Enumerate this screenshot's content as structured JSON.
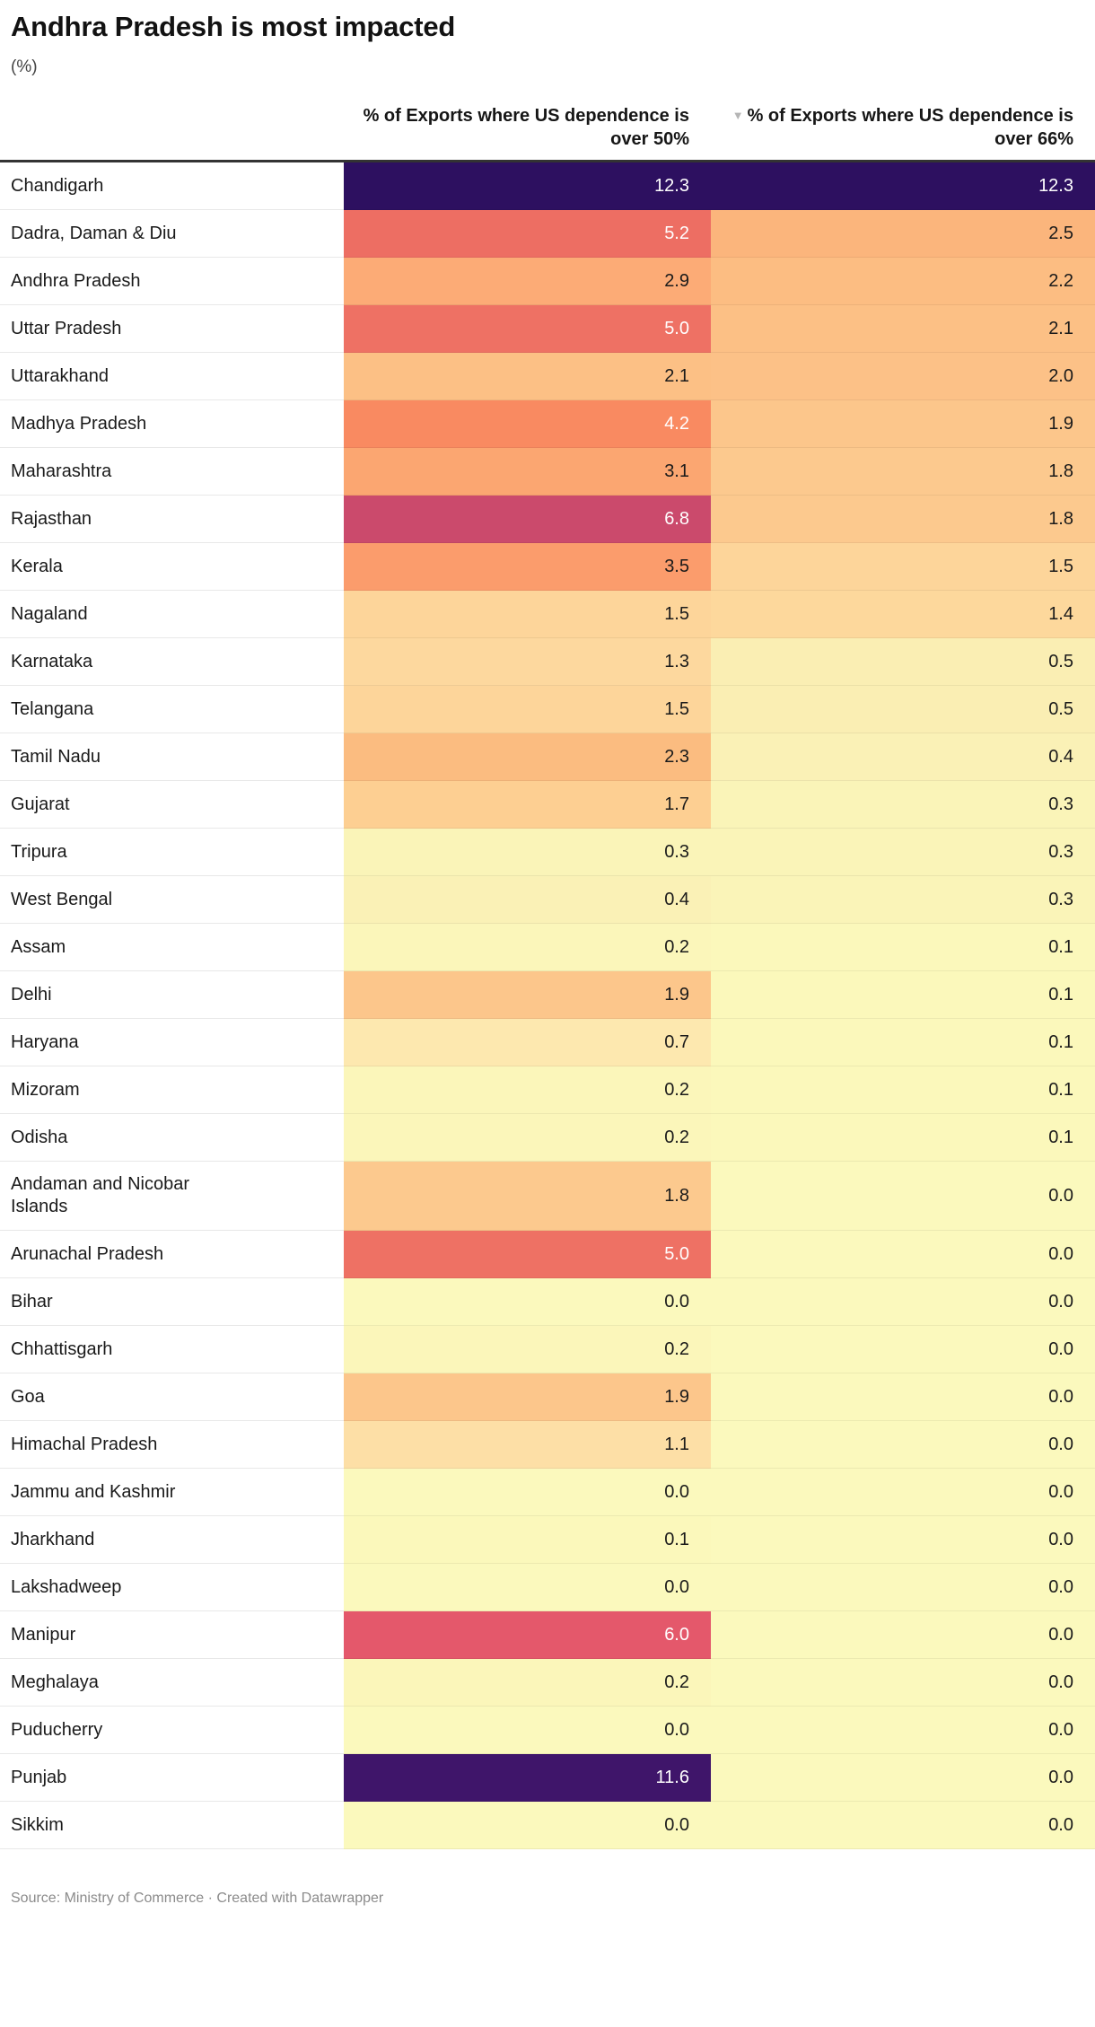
{
  "header": {
    "title": "Andhra Pradesh is most impacted",
    "subtitle": "(%)"
  },
  "columns": {
    "name": "",
    "col50": "% of Exports where US dependence is over 50%",
    "col66": "% of Exports where US dependence is over 66%",
    "sort_icon": "▼"
  },
  "footer": {
    "source_text": "Source: Ministry of Commerce",
    "separator": " · ",
    "attribution": "Created with Datawrapper"
  },
  "palette": {
    "dark_purple": "#2d1060",
    "purple": "#3f156a",
    "magenta": "#cb4a6c",
    "red": "#e4586b",
    "salmon": "#ee7164",
    "orange": "#fba671",
    "light_orange": "#fcc187",
    "pale_yellow": "#fbf9bd",
    "text_dark": "#1a1a1a",
    "text_light": "#ffffff",
    "header_rule": "#333333"
  },
  "rows": [
    {
      "name": "Chandigarh",
      "v50": "12.3",
      "v66": "12.3",
      "c50": "#2d1060",
      "c66": "#2d1060",
      "light50": true,
      "light66": true,
      "tall": false
    },
    {
      "name": "Dadra, Daman & Diu",
      "v50": "5.2",
      "v66": "2.5",
      "c50": "#ed6e63",
      "c66": "#fbb57c",
      "light50": true,
      "light66": false,
      "tall": false
    },
    {
      "name": "Andhra Pradesh",
      "v50": "2.9",
      "v66": "2.2",
      "c50": "#fcab76",
      "c66": "#fcbd82",
      "light50": false,
      "light66": false,
      "tall": false
    },
    {
      "name": "Uttar Pradesh",
      "v50": "5.0",
      "v66": "2.1",
      "c50": "#ee7164",
      "c66": "#fcc085",
      "light50": true,
      "light66": false,
      "tall": false
    },
    {
      "name": "Uttarakhand",
      "v50": "2.1",
      "v66": "2.0",
      "c50": "#fcc085",
      "c66": "#fcc187",
      "light50": false,
      "light66": false,
      "tall": false
    },
    {
      "name": "Madhya Pradesh",
      "v50": "4.2",
      "v66": "1.9",
      "c50": "#f98a61",
      "c66": "#fcc68b",
      "light50": true,
      "light66": false,
      "tall": false
    },
    {
      "name": "Maharashtra",
      "v50": "3.1",
      "v66": "1.8",
      "c50": "#fba671",
      "c66": "#fcc98e",
      "light50": false,
      "light66": false,
      "tall": false
    },
    {
      "name": "Rajasthan",
      "v50": "6.8",
      "v66": "1.8",
      "c50": "#cb4a6c",
      "c66": "#fcc98e",
      "light50": true,
      "light66": false,
      "tall": false
    },
    {
      "name": "Kerala",
      "v50": "3.5",
      "v66": "1.5",
      "c50": "#fb9c6c",
      "c66": "#fdd59a",
      "light50": false,
      "light66": false,
      "tall": false
    },
    {
      "name": "Nagaland",
      "v50": "1.5",
      "v66": "1.4",
      "c50": "#fdd59a",
      "c66": "#fdd89c",
      "light50": false,
      "light66": false,
      "tall": false
    },
    {
      "name": "Karnataka",
      "v50": "1.3",
      "v66": "0.5",
      "c50": "#fdd89e",
      "c66": "#faeeb3",
      "light50": false,
      "light66": false,
      "tall": false
    },
    {
      "name": "Telangana",
      "v50": "1.5",
      "v66": "0.5",
      "c50": "#fdd59a",
      "c66": "#faeeb3",
      "light50": false,
      "light66": false,
      "tall": false
    },
    {
      "name": "Tamil Nadu",
      "v50": "2.3",
      "v66": "0.4",
      "c50": "#fbbc80",
      "c66": "#faf1b6",
      "light50": false,
      "light66": false,
      "tall": false
    },
    {
      "name": "Gujarat",
      "v50": "1.7",
      "v66": "0.3",
      "c50": "#fdcf92",
      "c66": "#faf4b8",
      "light50": false,
      "light66": false,
      "tall": false
    },
    {
      "name": "Tripura",
      "v50": "0.3",
      "v66": "0.3",
      "c50": "#faf4b8",
      "c66": "#faf4b8",
      "light50": false,
      "light66": false,
      "tall": false
    },
    {
      "name": "West Bengal",
      "v50": "0.4",
      "v66": "0.3",
      "c50": "#faf1b6",
      "c66": "#faf4b8",
      "light50": false,
      "light66": false,
      "tall": false
    },
    {
      "name": "Assam",
      "v50": "0.2",
      "v66": "0.1",
      "c50": "#fbf6ba",
      "c66": "#fbf8bb",
      "light50": false,
      "light66": false,
      "tall": false
    },
    {
      "name": "Delhi",
      "v50": "1.9",
      "v66": "0.1",
      "c50": "#fcc68b",
      "c66": "#fbf8bb",
      "light50": false,
      "light66": false,
      "tall": false
    },
    {
      "name": "Haryana",
      "v50": "0.7",
      "v66": "0.1",
      "c50": "#fde8af",
      "c66": "#fbf8bb",
      "light50": false,
      "light66": false,
      "tall": false
    },
    {
      "name": "Mizoram",
      "v50": "0.2",
      "v66": "0.1",
      "c50": "#fbf6ba",
      "c66": "#fbf8bb",
      "light50": false,
      "light66": false,
      "tall": false
    },
    {
      "name": "Odisha",
      "v50": "0.2",
      "v66": "0.1",
      "c50": "#fbf6ba",
      "c66": "#fbf8bb",
      "light50": false,
      "light66": false,
      "tall": false
    },
    {
      "name": "Andaman and Nicobar Islands",
      "v50": "1.8",
      "v66": "0.0",
      "c50": "#fcc98e",
      "c66": "#fbf9bd",
      "light50": false,
      "light66": false,
      "tall": true
    },
    {
      "name": "Arunachal Pradesh",
      "v50": "5.0",
      "v66": "0.0",
      "c50": "#ee7164",
      "c66": "#fbf9bd",
      "light50": true,
      "light66": false,
      "tall": false
    },
    {
      "name": "Bihar",
      "v50": "0.0",
      "v66": "0.0",
      "c50": "#fbf9bd",
      "c66": "#fbf9bd",
      "light50": false,
      "light66": false,
      "tall": false
    },
    {
      "name": "Chhattisgarh",
      "v50": "0.2",
      "v66": "0.0",
      "c50": "#fbf6ba",
      "c66": "#fbf9bd",
      "light50": false,
      "light66": false,
      "tall": false
    },
    {
      "name": "Goa",
      "v50": "1.9",
      "v66": "0.0",
      "c50": "#fcc68b",
      "c66": "#fbf9bd",
      "light50": false,
      "light66": false,
      "tall": false
    },
    {
      "name": "Himachal Pradesh",
      "v50": "1.1",
      "v66": "0.0",
      "c50": "#fddfa6",
      "c66": "#fbf9bd",
      "light50": false,
      "light66": false,
      "tall": false
    },
    {
      "name": "Jammu and Kashmir",
      "v50": "0.0",
      "v66": "0.0",
      "c50": "#fbf9bd",
      "c66": "#fbf9bd",
      "light50": false,
      "light66": false,
      "tall": false
    },
    {
      "name": "Jharkhand",
      "v50": "0.1",
      "v66": "0.0",
      "c50": "#fbf8bb",
      "c66": "#fbf9bd",
      "light50": false,
      "light66": false,
      "tall": false
    },
    {
      "name": "Lakshadweep",
      "v50": "0.0",
      "v66": "0.0",
      "c50": "#fbf9bd",
      "c66": "#fbf9bd",
      "light50": false,
      "light66": false,
      "tall": false
    },
    {
      "name": "Manipur",
      "v50": "6.0",
      "v66": "0.0",
      "c50": "#e4586b",
      "c66": "#fbf9bd",
      "light50": true,
      "light66": false,
      "tall": false
    },
    {
      "name": "Meghalaya",
      "v50": "0.2",
      "v66": "0.0",
      "c50": "#fbf6ba",
      "c66": "#fbf9bd",
      "light50": false,
      "light66": false,
      "tall": false
    },
    {
      "name": "Puducherry",
      "v50": "0.0",
      "v66": "0.0",
      "c50": "#fbf9bd",
      "c66": "#fbf9bd",
      "light50": false,
      "light66": false,
      "tall": false
    },
    {
      "name": "Punjab",
      "v50": "11.6",
      "v66": "0.0",
      "c50": "#3f156a",
      "c66": "#fbf9bd",
      "light50": true,
      "light66": false,
      "tall": false
    },
    {
      "name": "Sikkim",
      "v50": "0.0",
      "v66": "0.0",
      "c50": "#fbf9bd",
      "c66": "#fbf9bd",
      "light50": false,
      "light66": false,
      "tall": false
    }
  ],
  "chart_data": {
    "type": "heatmap",
    "title": "Andhra Pradesh is most impacted",
    "subtitle": "(%)",
    "unit": "%",
    "sorted_by": "% of Exports where US dependence is over 66%",
    "sort_direction": "descending",
    "categories": [
      "Chandigarh",
      "Dadra, Daman & Diu",
      "Andhra Pradesh",
      "Uttar Pradesh",
      "Uttarakhand",
      "Madhya Pradesh",
      "Maharashtra",
      "Rajasthan",
      "Kerala",
      "Nagaland",
      "Karnataka",
      "Telangana",
      "Tamil Nadu",
      "Gujarat",
      "Tripura",
      "West Bengal",
      "Assam",
      "Delhi",
      "Haryana",
      "Mizoram",
      "Odisha",
      "Andaman and Nicobar Islands",
      "Arunachal Pradesh",
      "Bihar",
      "Chhattisgarh",
      "Goa",
      "Himachal Pradesh",
      "Jammu and Kashmir",
      "Jharkhand",
      "Lakshadweep",
      "Manipur",
      "Meghalaya",
      "Puducherry",
      "Punjab",
      "Sikkim"
    ],
    "series": [
      {
        "name": "% of Exports where US dependence is over 50%",
        "values": [
          12.3,
          5.2,
          2.9,
          5.0,
          2.1,
          4.2,
          3.1,
          6.8,
          3.5,
          1.5,
          1.3,
          1.5,
          2.3,
          1.7,
          0.3,
          0.4,
          0.2,
          1.9,
          0.7,
          0.2,
          0.2,
          1.8,
          5.0,
          0.0,
          0.2,
          1.9,
          1.1,
          0.0,
          0.1,
          0.0,
          6.0,
          0.2,
          0.0,
          11.6,
          0.0
        ]
      },
      {
        "name": "% of Exports where US dependence is over 66%",
        "values": [
          12.3,
          2.5,
          2.2,
          2.1,
          2.0,
          1.9,
          1.8,
          1.8,
          1.5,
          1.4,
          0.5,
          0.5,
          0.4,
          0.3,
          0.3,
          0.3,
          0.1,
          0.1,
          0.1,
          0.1,
          0.1,
          0.0,
          0.0,
          0.0,
          0.0,
          0.0,
          0.0,
          0.0,
          0.0,
          0.0,
          0.0,
          0.0,
          0.0,
          0.0,
          0.0
        ]
      }
    ],
    "color_scale": "sequential yellow-orange-red-purple (low #fbf9bd → high #2d1060)",
    "legend_position": "none",
    "source": "Ministry of Commerce"
  }
}
